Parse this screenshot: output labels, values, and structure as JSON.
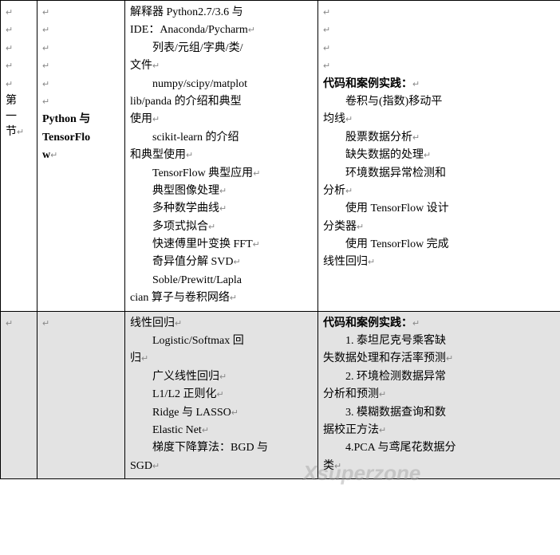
{
  "colors": {
    "border": "#000000",
    "bg_white": "#ffffff",
    "bg_grey": "#e3e3e3",
    "mark_grey": "#888888",
    "watermark": "rgba(160,160,160,0.45)"
  },
  "enter_mark": "↵",
  "watermark": "Xsuperzone",
  "row1": {
    "col1": "第一节",
    "col2_line1": "Python 与",
    "col2_line2": "TensorFlo",
    "col2_line3": "w",
    "col3": {
      "l1": "解释器 Python2.7/3.6 与",
      "l2": "IDE：Anaconda/Pycharm",
      "l3": "列表/元组/字典/类/",
      "l4": "文件",
      "l5": "numpy/scipy/matplot",
      "l6": "lib/panda 的介绍和典型",
      "l7": "使用",
      "l8": "scikit-learn 的介绍",
      "l9": "和典型使用",
      "l10": "TensorFlow 典型应用",
      "l11": "典型图像处理",
      "l12": "多种数学曲线",
      "l13": "多项式拟合",
      "l14": "快速傅里叶变换 FFT",
      "l15": "奇异值分解 SVD",
      "l16": "Soble/Prewitt/Lapla",
      "l17": "cian 算子与卷积网络"
    },
    "col4": {
      "h": "代码和案例实践：",
      "l1": "卷积与(指数)移动平",
      "l2": "均线",
      "l3": "股票数据分析",
      "l4": "缺失数据的处理",
      "l5": "环境数据异常检测和",
      "l6": "分析",
      "l7": "使用 TensorFlow 设计",
      "l8": "分类器",
      "l9": "使用 TensorFlow 完成",
      "l10": "线性回归"
    }
  },
  "row2": {
    "col3": {
      "l1": "线性回归",
      "l2": "Logistic/Softmax  回",
      "l3": "归",
      "l4": "广义线性回归",
      "l5": "L1/L2 正则化",
      "l6": "Ridge 与 LASSO",
      "l7": "Elastic Net",
      "l8": "梯度下降算法：BGD 与",
      "l9": "SGD"
    },
    "col4": {
      "h": "代码和案例实践：",
      "l1": "1. 泰坦尼克号乘客缺",
      "l2": "失数据处理和存活率预测",
      "l3": "2. 环境检测数据异常",
      "l4": "分析和预测",
      "l5": "3. 模糊数据查询和数",
      "l6": "据校正方法",
      "l7": "4.PCA 与鸢尾花数据分",
      "l8": "类"
    }
  }
}
